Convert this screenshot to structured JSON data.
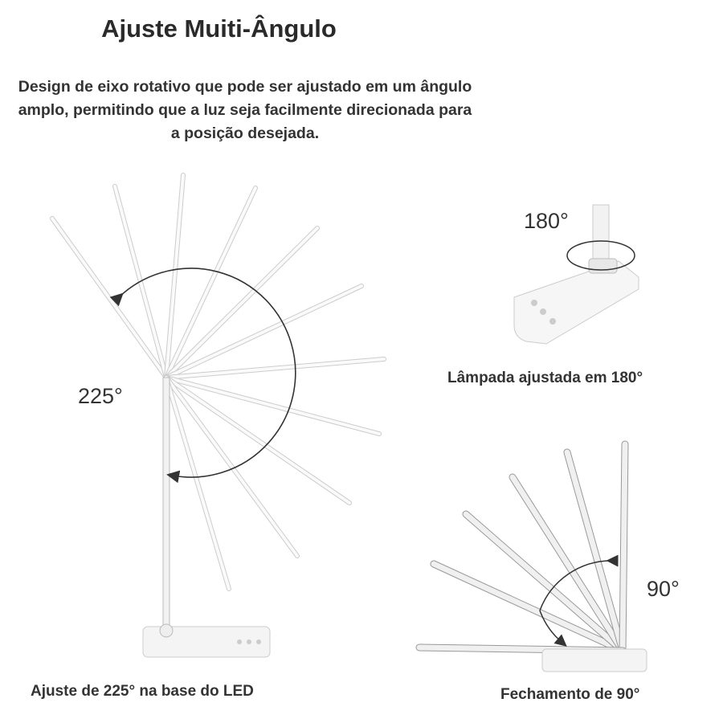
{
  "title": "Ajuste Muiti-Ângulo",
  "description": "Design de eixo rotativo que pode ser ajustado em um ângulo amplo, permitindo que a luz seja facilmente direcionada para a posição desejada.",
  "left_panel": {
    "angle": "225°",
    "caption": "Ajuste de 225° na base do LED"
  },
  "top_right_panel": {
    "angle": "180°",
    "caption": "Lâmpada ajustada em 180°"
  },
  "bottom_right_panel": {
    "angle": "90°",
    "caption": "Fechamento de 90°"
  }
}
